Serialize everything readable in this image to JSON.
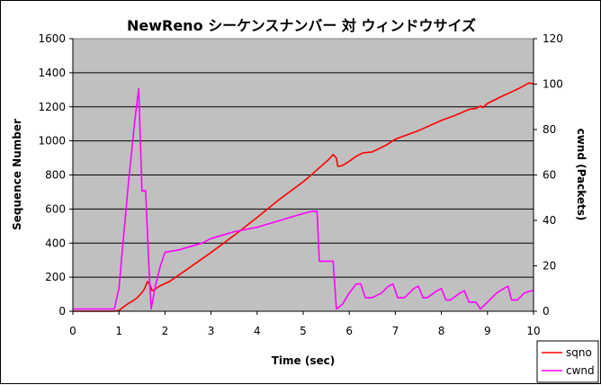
{
  "chart_data": {
    "type": "line",
    "title": "NewReno シーケンスナンバー 対 ウィンドウサイズ",
    "xlabel": "Time (sec)",
    "ylabel": "Sequence Number",
    "y2label": "cwnd (Packets)",
    "xlim": [
      0,
      10
    ],
    "ylim": [
      0,
      1600
    ],
    "y2lim": [
      0,
      120
    ],
    "xticks": [
      "0",
      "1",
      "2",
      "3",
      "4",
      "5",
      "6",
      "7",
      "8",
      "9",
      "10"
    ],
    "yticks": [
      "0",
      "200",
      "400",
      "600",
      "800",
      "1000",
      "1200",
      "1400",
      "1600"
    ],
    "y2ticks": [
      "0",
      "20",
      "40",
      "60",
      "80",
      "100",
      "120"
    ],
    "grid": true,
    "legend_position": "bottom-right",
    "colors": {
      "plot_bg": "#c0c0c0",
      "sqno": "#ff0000",
      "cwnd": "#ff00ff"
    },
    "series": [
      {
        "name": "sqno",
        "axis": "left",
        "color": "#ff0000",
        "points": [
          [
            0,
            0
          ],
          [
            0.9,
            0
          ],
          [
            1.0,
            5
          ],
          [
            1.1,
            25
          ],
          [
            1.2,
            45
          ],
          [
            1.3,
            60
          ],
          [
            1.4,
            80
          ],
          [
            1.5,
            110
          ],
          [
            1.55,
            130
          ],
          [
            1.62,
            175
          ],
          [
            1.68,
            150
          ],
          [
            1.72,
            120
          ],
          [
            1.78,
            130
          ],
          [
            1.9,
            150
          ],
          [
            2.1,
            175
          ],
          [
            2.5,
            250
          ],
          [
            3.0,
            345
          ],
          [
            3.5,
            445
          ],
          [
            4.0,
            550
          ],
          [
            4.5,
            660
          ],
          [
            5.0,
            760
          ],
          [
            5.3,
            830
          ],
          [
            5.55,
            890
          ],
          [
            5.65,
            920
          ],
          [
            5.72,
            900
          ],
          [
            5.75,
            850
          ],
          [
            5.85,
            855
          ],
          [
            6.0,
            880
          ],
          [
            6.15,
            910
          ],
          [
            6.3,
            930
          ],
          [
            6.5,
            935
          ],
          [
            6.8,
            975
          ],
          [
            7.0,
            1010
          ],
          [
            7.5,
            1060
          ],
          [
            8.0,
            1120
          ],
          [
            8.3,
            1150
          ],
          [
            8.6,
            1185
          ],
          [
            8.75,
            1190
          ],
          [
            8.85,
            1205
          ],
          [
            8.9,
            1195
          ],
          [
            9.0,
            1220
          ],
          [
            9.3,
            1260
          ],
          [
            9.5,
            1285
          ],
          [
            9.7,
            1310
          ],
          [
            9.9,
            1340
          ],
          [
            10.0,
            1335
          ]
        ]
      },
      {
        "name": "cwnd",
        "axis": "right",
        "color": "#ff00ff",
        "points": [
          [
            0,
            1
          ],
          [
            0.9,
            1
          ],
          [
            1.0,
            10
          ],
          [
            1.2,
            55
          ],
          [
            1.35,
            85
          ],
          [
            1.43,
            98
          ],
          [
            1.5,
            53
          ],
          [
            1.58,
            53
          ],
          [
            1.65,
            20
          ],
          [
            1.7,
            1
          ],
          [
            1.8,
            12
          ],
          [
            1.9,
            20
          ],
          [
            2.0,
            26
          ],
          [
            2.3,
            27
          ],
          [
            2.8,
            30
          ],
          [
            3.0,
            32
          ],
          [
            3.5,
            35
          ],
          [
            4.0,
            37
          ],
          [
            4.5,
            40
          ],
          [
            5.0,
            43
          ],
          [
            5.2,
            44
          ],
          [
            5.3,
            44
          ],
          [
            5.35,
            22
          ],
          [
            5.65,
            22
          ],
          [
            5.72,
            1
          ],
          [
            5.85,
            3
          ],
          [
            6.0,
            8
          ],
          [
            6.15,
            12
          ],
          [
            6.25,
            12
          ],
          [
            6.35,
            6
          ],
          [
            6.5,
            6
          ],
          [
            6.7,
            8
          ],
          [
            6.85,
            11
          ],
          [
            6.95,
            12
          ],
          [
            7.05,
            6
          ],
          [
            7.2,
            6
          ],
          [
            7.4,
            10
          ],
          [
            7.5,
            11
          ],
          [
            7.6,
            6
          ],
          [
            7.7,
            6
          ],
          [
            7.9,
            9
          ],
          [
            8.0,
            10
          ],
          [
            8.1,
            5
          ],
          [
            8.2,
            5
          ],
          [
            8.4,
            8
          ],
          [
            8.5,
            9
          ],
          [
            8.6,
            4
          ],
          [
            8.75,
            4
          ],
          [
            8.85,
            1
          ],
          [
            9.0,
            4
          ],
          [
            9.2,
            8
          ],
          [
            9.35,
            10
          ],
          [
            9.45,
            11
          ],
          [
            9.52,
            5
          ],
          [
            9.65,
            5
          ],
          [
            9.8,
            8
          ],
          [
            9.95,
            9
          ],
          [
            10.0,
            9
          ]
        ]
      }
    ]
  }
}
